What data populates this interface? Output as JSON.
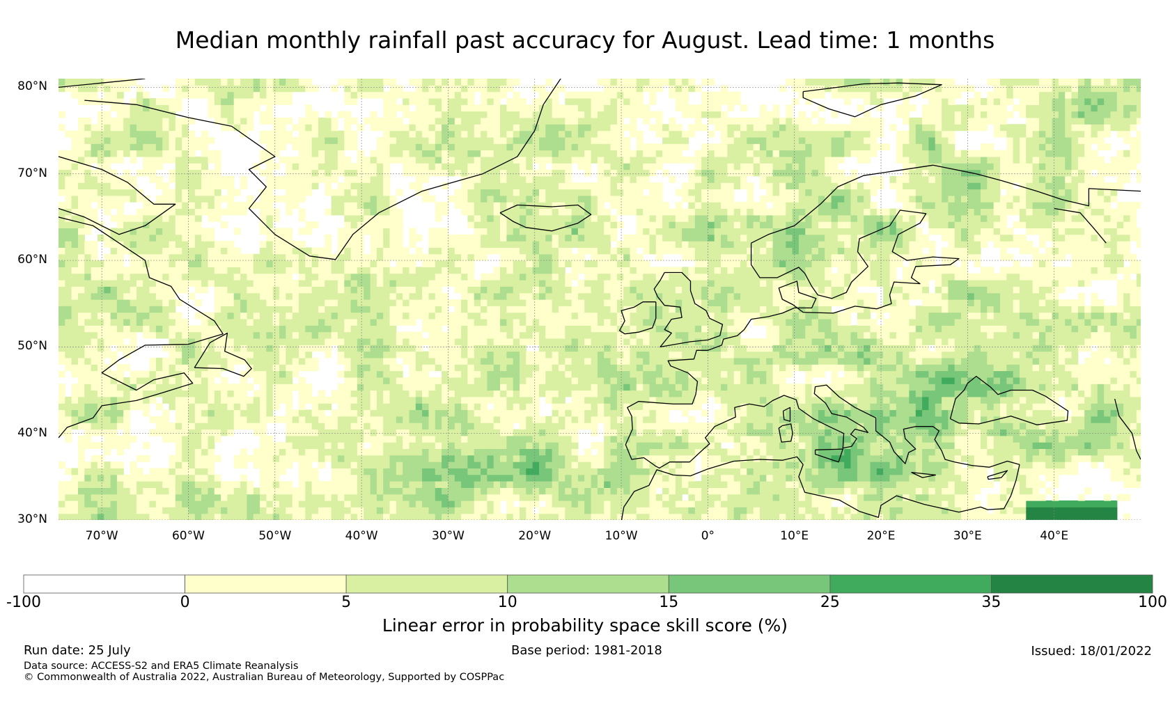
{
  "title": "Median monthly rainfall past accuracy for August. Lead time: 1 months",
  "map": {
    "lat_labels": [
      "80°N",
      "70°N",
      "60°N",
      "50°N",
      "40°N",
      "30°N"
    ],
    "lon_labels": [
      "70°W",
      "60°W",
      "50°W",
      "40°W",
      "30°W",
      "20°W",
      "10°W",
      "0°",
      "10°E",
      "20°E",
      "30°E",
      "40°E"
    ],
    "extent": {
      "lon": [
        -75,
        50
      ],
      "lat": [
        30,
        81
      ]
    },
    "coastline_color": "#000000",
    "gridline_style": "dotted gray"
  },
  "colorbar": {
    "label": "Linear error in probability space skill score (%)",
    "ticks": [
      "-100",
      "0",
      "5",
      "10",
      "15",
      "25",
      "35",
      "100"
    ],
    "colors": [
      "#ffffff",
      "#ffffcc",
      "#d9f0a3",
      "#addd8e",
      "#78c679",
      "#41ab5d",
      "#238443"
    ]
  },
  "footer": {
    "run_date": "Run date: 25 July",
    "base_period": "Base period: 1981-2018",
    "issued": "Issued: 18/01/2022",
    "data_source": "Data source: ACCESS-S2 and ERA5 Climate Reanalysis",
    "copyright": "© Commonwealth of Australia 2022, Australian Bureau of Meteorology, Supported by COSPPac"
  }
}
